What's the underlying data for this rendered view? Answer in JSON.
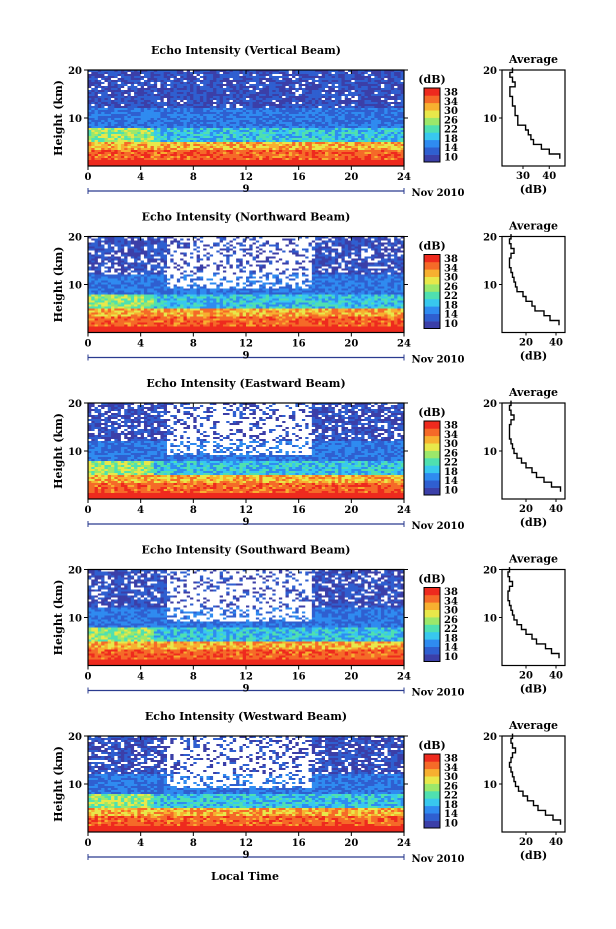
{
  "figure": {
    "xlabel": "Local Time",
    "date_label": "Nov 2010",
    "day_label": "9",
    "ylabel": "Height (km)",
    "colorbar_unit": "(dB)",
    "colorbar_ticks": [
      "10",
      "14",
      "18",
      "22",
      "26",
      "30",
      "34",
      "38"
    ],
    "avg_title": "Average",
    "avg_xlabel": "(dB)",
    "colormap": [
      "#3b3fa8",
      "#2f5fd0",
      "#2f8bf0",
      "#38c8ee",
      "#4fe0b0",
      "#9ce86a",
      "#e8e84a",
      "#f7b030",
      "#f56a28",
      "#ee2a1e"
    ]
  },
  "chart_data": [
    {
      "type": "heatmap",
      "title": "Echo Intensity (Vertical Beam)",
      "xlabel": "Local Time",
      "ylabel": "Height (km)",
      "xlim": [
        0,
        24
      ],
      "ylim": [
        0,
        20
      ],
      "xticks": [
        0,
        4,
        8,
        12,
        16,
        20,
        24
      ],
      "yticks": [
        10,
        20
      ],
      "z_unit": "dB",
      "zlim": [
        10,
        38
      ],
      "avg_profile": {
        "title": "Average",
        "xlabel": "(dB)",
        "xlim": [
          22,
          46
        ],
        "xticks": [
          30,
          40
        ],
        "height": [
          2,
          3,
          4,
          5,
          6,
          7,
          8,
          9,
          10,
          11,
          12,
          13,
          14,
          15,
          16,
          17,
          18,
          19,
          20
        ],
        "value": [
          44,
          40,
          37,
          34,
          33,
          32,
          31,
          28,
          28,
          27,
          27,
          26,
          26,
          25,
          25,
          27,
          26,
          25,
          26
        ]
      }
    },
    {
      "type": "heatmap",
      "title": "Echo Intensity (Northward Beam)",
      "xlabel": "Local Time",
      "ylabel": "Height (km)",
      "xlim": [
        0,
        24
      ],
      "ylim": [
        0,
        20
      ],
      "xticks": [
        0,
        4,
        8,
        12,
        16,
        20,
        24
      ],
      "yticks": [
        10,
        20
      ],
      "z_unit": "dB",
      "zlim": [
        10,
        38
      ],
      "avg_profile": {
        "title": "Average",
        "xlabel": "(dB)",
        "xlim": [
          4,
          46
        ],
        "xticks": [
          20,
          40
        ],
        "height": [
          2,
          3,
          4,
          5,
          6,
          7,
          8,
          9,
          10,
          11,
          12,
          13,
          14,
          15,
          16,
          17,
          18,
          19,
          20
        ],
        "value": [
          42,
          36,
          32,
          26,
          24,
          20,
          18,
          14,
          13,
          12,
          11,
          10,
          9,
          9,
          10,
          12,
          10,
          9,
          10
        ]
      }
    },
    {
      "type": "heatmap",
      "title": "Echo Intensity (Eastward Beam)",
      "xlabel": "Local Time",
      "ylabel": "Height (km)",
      "xlim": [
        0,
        24
      ],
      "ylim": [
        0,
        20
      ],
      "xticks": [
        0,
        4,
        8,
        12,
        16,
        20,
        24
      ],
      "yticks": [
        10,
        20
      ],
      "z_unit": "dB",
      "zlim": [
        10,
        38
      ],
      "avg_profile": {
        "title": "Average",
        "xlabel": "(dB)",
        "xlim": [
          4,
          46
        ],
        "xticks": [
          20,
          40
        ],
        "height": [
          2,
          3,
          4,
          5,
          6,
          7,
          8,
          9,
          10,
          11,
          12,
          13,
          14,
          15,
          16,
          17,
          18,
          19,
          20
        ],
        "value": [
          43,
          37,
          32,
          27,
          24,
          20,
          17,
          14,
          12,
          11,
          10,
          9,
          9,
          9,
          10,
          12,
          10,
          9,
          10
        ]
      }
    },
    {
      "type": "heatmap",
      "title": "Echo Intensity (Southward Beam)",
      "xlabel": "Local Time",
      "ylabel": "Height (km)",
      "xlim": [
        0,
        24
      ],
      "ylim": [
        0,
        20
      ],
      "xticks": [
        0,
        4,
        8,
        12,
        16,
        20,
        24
      ],
      "yticks": [
        10,
        20
      ],
      "z_unit": "dB",
      "zlim": [
        10,
        38
      ],
      "avg_profile": {
        "title": "Average",
        "xlabel": "(dB)",
        "xlim": [
          4,
          46
        ],
        "xticks": [
          20,
          40
        ],
        "height": [
          2,
          3,
          4,
          5,
          6,
          7,
          8,
          9,
          10,
          11,
          12,
          13,
          14,
          15,
          16,
          17,
          18,
          19,
          20
        ],
        "value": [
          42,
          37,
          33,
          27,
          24,
          20,
          17,
          14,
          12,
          11,
          10,
          9,
          8,
          8,
          9,
          11,
          9,
          8,
          9
        ]
      }
    },
    {
      "type": "heatmap",
      "title": "Echo Intensity (Westward Beam)",
      "xlabel": "Local Time",
      "ylabel": "Height (km)",
      "xlim": [
        0,
        24
      ],
      "ylim": [
        0,
        20
      ],
      "xticks": [
        0,
        4,
        8,
        12,
        16,
        20,
        24
      ],
      "yticks": [
        10,
        20
      ],
      "z_unit": "dB",
      "zlim": [
        10,
        38
      ],
      "avg_profile": {
        "title": "Average",
        "xlabel": "(dB)",
        "xlim": [
          4,
          46
        ],
        "xticks": [
          20,
          40
        ],
        "height": [
          2,
          3,
          4,
          5,
          6,
          7,
          8,
          9,
          10,
          11,
          12,
          13,
          14,
          15,
          16,
          17,
          18,
          19,
          20
        ],
        "value": [
          43,
          38,
          33,
          28,
          25,
          21,
          18,
          15,
          13,
          12,
          11,
          10,
          9,
          10,
          11,
          13,
          11,
          10,
          11
        ]
      }
    }
  ]
}
